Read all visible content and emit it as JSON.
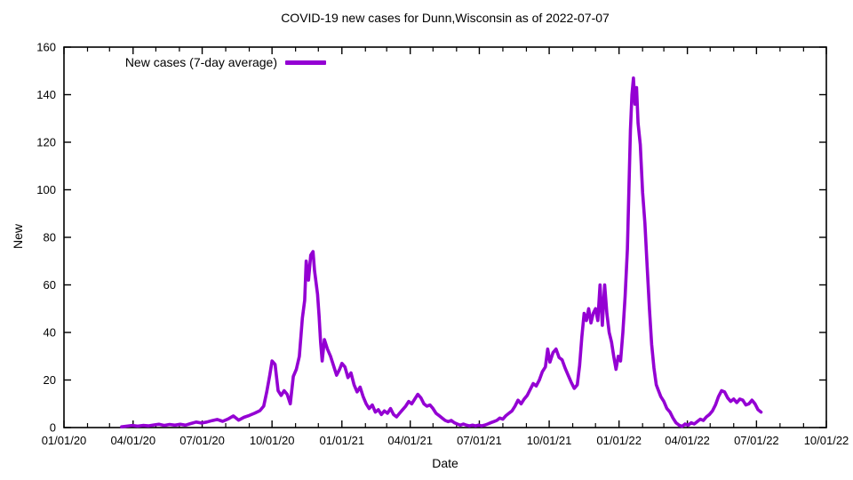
{
  "title": "COVID-19 new cases for Dunn,Wisconsin as of 2022-07-07",
  "legend": {
    "label": "New cases (7-day average)"
  },
  "axes": {
    "x_label": "Date",
    "y_label": "New"
  },
  "chart_data": {
    "type": "line",
    "title": "COVID-19 new cases for Dunn,Wisconsin as of 2022-07-07",
    "xlabel": "Date",
    "ylabel": "New",
    "grid": false,
    "legend_position": "top-left-inside",
    "ylim": [
      0,
      160
    ],
    "y_ticks": [
      0,
      20,
      40,
      60,
      80,
      100,
      120,
      140,
      160
    ],
    "x_range_dates": [
      "2020-01-01",
      "2022-10-01"
    ],
    "x_ticks": [
      {
        "date": "2020-01-01",
        "label": "01/01/20"
      },
      {
        "date": "2020-04-01",
        "label": "04/01/20"
      },
      {
        "date": "2020-07-01",
        "label": "07/01/20"
      },
      {
        "date": "2020-10-01",
        "label": "10/01/20"
      },
      {
        "date": "2021-01-01",
        "label": "01/01/21"
      },
      {
        "date": "2021-04-01",
        "label": "04/01/21"
      },
      {
        "date": "2021-07-01",
        "label": "07/01/21"
      },
      {
        "date": "2021-10-01",
        "label": "10/01/21"
      },
      {
        "date": "2022-01-01",
        "label": "01/01/22"
      },
      {
        "date": "2022-04-01",
        "label": "04/01/22"
      },
      {
        "date": "2022-07-01",
        "label": "07/01/22"
      },
      {
        "date": "2022-10-01",
        "label": "10/01/22"
      }
    ],
    "x_minor_ticks": "monthly",
    "line_color": "#9400d3",
    "axis_color": "#000000",
    "series": [
      {
        "name": "New cases (7-day average)",
        "points": [
          [
            "2020-03-17",
            0.3
          ],
          [
            "2020-03-24",
            0.6
          ],
          [
            "2020-03-31",
            0.9
          ],
          [
            "2020-04-07",
            0.6
          ],
          [
            "2020-04-14",
            0.9
          ],
          [
            "2020-04-21",
            0.7
          ],
          [
            "2020-04-28",
            1.1
          ],
          [
            "2020-05-05",
            1.4
          ],
          [
            "2020-05-12",
            0.9
          ],
          [
            "2020-05-19",
            1.3
          ],
          [
            "2020-05-26",
            1.0
          ],
          [
            "2020-06-02",
            1.4
          ],
          [
            "2020-06-09",
            1.0
          ],
          [
            "2020-06-16",
            1.7
          ],
          [
            "2020-06-23",
            2.3
          ],
          [
            "2020-06-30",
            1.9
          ],
          [
            "2020-07-07",
            2.3
          ],
          [
            "2020-07-14",
            2.9
          ],
          [
            "2020-07-21",
            3.4
          ],
          [
            "2020-07-28",
            2.6
          ],
          [
            "2020-08-04",
            3.6
          ],
          [
            "2020-08-11",
            4.9
          ],
          [
            "2020-08-18",
            3.1
          ],
          [
            "2020-08-25",
            4.3
          ],
          [
            "2020-09-01",
            5.1
          ],
          [
            "2020-09-08",
            6.0
          ],
          [
            "2020-09-15",
            7.1
          ],
          [
            "2020-09-20",
            9.0
          ],
          [
            "2020-09-24",
            15.0
          ],
          [
            "2020-09-28",
            22.0
          ],
          [
            "2020-10-01",
            28.0
          ],
          [
            "2020-10-05",
            26.5
          ],
          [
            "2020-10-09",
            15.5
          ],
          [
            "2020-10-13",
            13.5
          ],
          [
            "2020-10-17",
            15.5
          ],
          [
            "2020-10-21",
            14.0
          ],
          [
            "2020-10-25",
            10.0
          ],
          [
            "2020-10-29",
            21.5
          ],
          [
            "2020-11-02",
            24.5
          ],
          [
            "2020-11-06",
            30.0
          ],
          [
            "2020-11-10",
            46.0
          ],
          [
            "2020-11-13",
            53.5
          ],
          [
            "2020-11-15",
            70.0
          ],
          [
            "2020-11-18",
            62.0
          ],
          [
            "2020-11-21",
            72.5
          ],
          [
            "2020-11-24",
            74.0
          ],
          [
            "2020-11-26",
            66.0
          ],
          [
            "2020-11-30",
            56.0
          ],
          [
            "2020-12-02",
            47.0
          ],
          [
            "2020-12-04",
            36.0
          ],
          [
            "2020-12-06",
            28.0
          ],
          [
            "2020-12-09",
            37.0
          ],
          [
            "2020-12-13",
            33.0
          ],
          [
            "2020-12-17",
            30.0
          ],
          [
            "2020-12-21",
            26.0
          ],
          [
            "2020-12-25",
            22.0
          ],
          [
            "2020-12-29",
            24.5
          ],
          [
            "2021-01-01",
            27.0
          ],
          [
            "2021-01-05",
            25.5
          ],
          [
            "2021-01-09",
            21.0
          ],
          [
            "2021-01-13",
            23.0
          ],
          [
            "2021-01-17",
            18.0
          ],
          [
            "2021-01-21",
            15.0
          ],
          [
            "2021-01-25",
            17.0
          ],
          [
            "2021-01-29",
            13.0
          ],
          [
            "2021-02-02",
            10.0
          ],
          [
            "2021-02-06",
            8.0
          ],
          [
            "2021-02-10",
            9.5
          ],
          [
            "2021-02-14",
            6.5
          ],
          [
            "2021-02-18",
            7.5
          ],
          [
            "2021-02-22",
            5.5
          ],
          [
            "2021-02-26",
            7.0
          ],
          [
            "2021-03-02",
            6.0
          ],
          [
            "2021-03-06",
            8.0
          ],
          [
            "2021-03-10",
            5.5
          ],
          [
            "2021-03-14",
            4.5
          ],
          [
            "2021-03-18",
            6.0
          ],
          [
            "2021-03-22",
            7.5
          ],
          [
            "2021-03-26",
            9.0
          ],
          [
            "2021-03-30",
            11.0
          ],
          [
            "2021-04-03",
            10.0
          ],
          [
            "2021-04-07",
            12.0
          ],
          [
            "2021-04-11",
            14.0
          ],
          [
            "2021-04-15",
            12.5
          ],
          [
            "2021-04-19",
            10.0
          ],
          [
            "2021-04-23",
            9.0
          ],
          [
            "2021-04-27",
            9.5
          ],
          [
            "2021-05-01",
            8.0
          ],
          [
            "2021-05-05",
            6.0
          ],
          [
            "2021-05-09",
            5.0
          ],
          [
            "2021-05-13",
            4.0
          ],
          [
            "2021-05-17",
            3.0
          ],
          [
            "2021-05-21",
            2.5
          ],
          [
            "2021-05-25",
            3.0
          ],
          [
            "2021-05-29",
            2.0
          ],
          [
            "2021-06-02",
            1.5
          ],
          [
            "2021-06-06",
            1.0
          ],
          [
            "2021-06-10",
            1.5
          ],
          [
            "2021-06-14",
            1.0
          ],
          [
            "2021-06-18",
            0.7
          ],
          [
            "2021-06-22",
            1.0
          ],
          [
            "2021-06-26",
            0.7
          ],
          [
            "2021-06-30",
            1.0
          ],
          [
            "2021-07-04",
            0.7
          ],
          [
            "2021-07-08",
            1.0
          ],
          [
            "2021-07-12",
            1.5
          ],
          [
            "2021-07-16",
            2.0
          ],
          [
            "2021-07-20",
            2.5
          ],
          [
            "2021-07-24",
            3.0
          ],
          [
            "2021-07-28",
            4.0
          ],
          [
            "2021-08-01",
            3.5
          ],
          [
            "2021-08-05",
            5.0
          ],
          [
            "2021-08-09",
            6.0
          ],
          [
            "2021-08-13",
            7.0
          ],
          [
            "2021-08-17",
            9.0
          ],
          [
            "2021-08-21",
            11.5
          ],
          [
            "2021-08-25",
            10.0
          ],
          [
            "2021-08-29",
            12.0
          ],
          [
            "2021-09-02",
            13.5
          ],
          [
            "2021-09-06",
            16.0
          ],
          [
            "2021-09-10",
            18.5
          ],
          [
            "2021-09-14",
            17.5
          ],
          [
            "2021-09-18",
            20.0
          ],
          [
            "2021-09-22",
            23.5
          ],
          [
            "2021-09-26",
            25.5
          ],
          [
            "2021-09-29",
            33.0
          ],
          [
            "2021-10-02",
            27.5
          ],
          [
            "2021-10-06",
            31.5
          ],
          [
            "2021-10-10",
            33.0
          ],
          [
            "2021-10-14",
            29.5
          ],
          [
            "2021-10-18",
            28.5
          ],
          [
            "2021-10-22",
            25.0
          ],
          [
            "2021-10-26",
            22.0
          ],
          [
            "2021-10-30",
            19.0
          ],
          [
            "2021-11-03",
            16.5
          ],
          [
            "2021-11-07",
            18.0
          ],
          [
            "2021-11-10",
            26.0
          ],
          [
            "2021-11-13",
            38.0
          ],
          [
            "2021-11-16",
            48.0
          ],
          [
            "2021-11-19",
            45.0
          ],
          [
            "2021-11-22",
            50.0
          ],
          [
            "2021-11-25",
            44.0
          ],
          [
            "2021-11-28",
            48.0
          ],
          [
            "2021-12-01",
            50.0
          ],
          [
            "2021-12-04",
            45.0
          ],
          [
            "2021-12-07",
            60.0
          ],
          [
            "2021-12-10",
            43.0
          ],
          [
            "2021-12-13",
            60.0
          ],
          [
            "2021-12-16",
            48.0
          ],
          [
            "2021-12-19",
            40.0
          ],
          [
            "2021-12-22",
            36.0
          ],
          [
            "2021-12-25",
            30.0
          ],
          [
            "2021-12-28",
            24.5
          ],
          [
            "2021-12-31",
            30.0
          ],
          [
            "2022-01-03",
            28.0
          ],
          [
            "2022-01-06",
            40.0
          ],
          [
            "2022-01-09",
            55.0
          ],
          [
            "2022-01-12",
            75.0
          ],
          [
            "2022-01-14",
            100.0
          ],
          [
            "2022-01-16",
            125.0
          ],
          [
            "2022-01-18",
            140.0
          ],
          [
            "2022-01-20",
            147.0
          ],
          [
            "2022-01-22",
            136.0
          ],
          [
            "2022-01-24",
            143.0
          ],
          [
            "2022-01-26",
            128.0
          ],
          [
            "2022-01-29",
            119.0
          ],
          [
            "2022-02-01",
            99.0
          ],
          [
            "2022-02-04",
            86.0
          ],
          [
            "2022-02-07",
            68.0
          ],
          [
            "2022-02-10",
            50.0
          ],
          [
            "2022-02-13",
            35.0
          ],
          [
            "2022-02-16",
            25.0
          ],
          [
            "2022-02-19",
            18.0
          ],
          [
            "2022-02-22",
            15.5
          ],
          [
            "2022-02-25",
            13.0
          ],
          [
            "2022-03-01",
            11.0
          ],
          [
            "2022-03-05",
            8.0
          ],
          [
            "2022-03-09",
            6.5
          ],
          [
            "2022-03-13",
            4.0
          ],
          [
            "2022-03-17",
            2.0
          ],
          [
            "2022-03-21",
            1.0
          ],
          [
            "2022-03-25",
            0.5
          ],
          [
            "2022-03-29",
            1.5
          ],
          [
            "2022-04-02",
            1.0
          ],
          [
            "2022-04-06",
            2.0
          ],
          [
            "2022-04-10",
            1.5
          ],
          [
            "2022-04-14",
            2.5
          ],
          [
            "2022-04-18",
            3.5
          ],
          [
            "2022-04-22",
            3.0
          ],
          [
            "2022-04-26",
            4.5
          ],
          [
            "2022-04-30",
            5.5
          ],
          [
            "2022-05-04",
            7.0
          ],
          [
            "2022-05-08",
            9.5
          ],
          [
            "2022-05-12",
            13.0
          ],
          [
            "2022-05-16",
            15.5
          ],
          [
            "2022-05-20",
            15.0
          ],
          [
            "2022-05-24",
            12.5
          ],
          [
            "2022-05-28",
            11.0
          ],
          [
            "2022-06-01",
            12.0
          ],
          [
            "2022-06-05",
            10.5
          ],
          [
            "2022-06-09",
            12.0
          ],
          [
            "2022-06-13",
            11.5
          ],
          [
            "2022-06-17",
            9.5
          ],
          [
            "2022-06-21",
            10.0
          ],
          [
            "2022-06-25",
            11.5
          ],
          [
            "2022-06-29",
            10.0
          ],
          [
            "2022-07-03",
            7.5
          ],
          [
            "2022-07-07",
            6.5
          ]
        ]
      }
    ]
  }
}
